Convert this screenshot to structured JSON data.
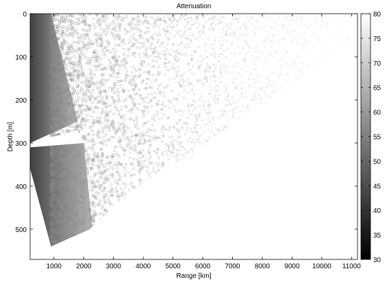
{
  "chart_data": {
    "type": "heatmap",
    "title": "Attenuation",
    "xlabel": "Range [km]",
    "ylabel": "Depth [m]",
    "xlim": [
      200,
      11200
    ],
    "ylim": [
      0,
      570
    ],
    "y_reversed": true,
    "x_ticks": [
      1000,
      2000,
      3000,
      4000,
      5000,
      6000,
      7000,
      8000,
      9000,
      10000,
      11000
    ],
    "y_ticks": [
      0,
      100,
      200,
      300,
      400,
      500
    ],
    "colorbar": {
      "min": 30,
      "max": 80,
      "ticks": [
        30,
        35,
        40,
        45,
        50,
        55,
        60,
        65,
        70,
        75,
        80
      ],
      "colormap": "gray"
    },
    "coverage_outline": [
      [
        200,
        0
      ],
      [
        11000,
        0
      ],
      [
        10900,
        80
      ],
      [
        9000,
        160
      ],
      [
        7500,
        230
      ],
      [
        5500,
        330
      ],
      [
        4000,
        390
      ],
      [
        2200,
        500
      ],
      [
        900,
        540
      ],
      [
        200,
        360
      ]
    ],
    "shadow_zone_outline": [
      [
        200,
        300
      ],
      [
        1800,
        270
      ],
      [
        2000,
        300
      ],
      [
        200,
        310
      ]
    ],
    "grid": false
  }
}
